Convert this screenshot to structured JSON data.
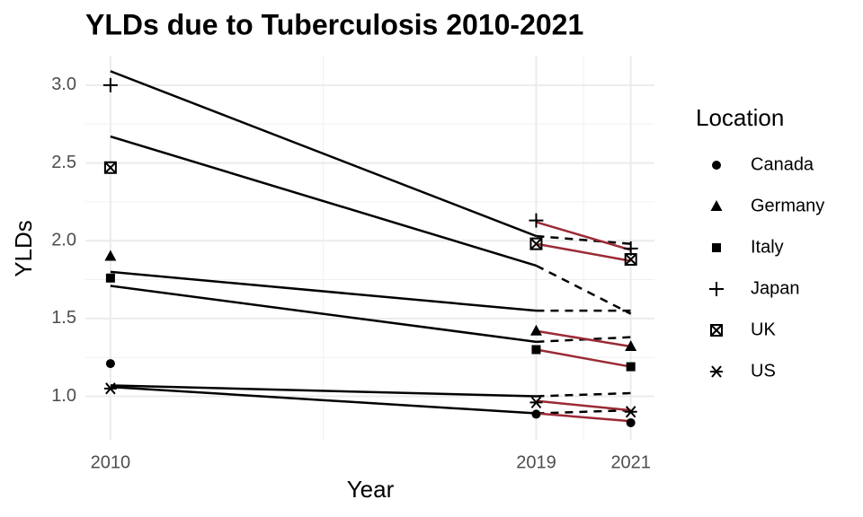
{
  "chart_data": {
    "type": "scatter",
    "title": "YLDs due to Tuberculosis 2010-2021",
    "x_label": "Year",
    "y_label": "YLDs",
    "x": [
      2010,
      2019,
      2021
    ],
    "xlim": [
      2009.47,
      2021.5
    ],
    "xticks": [
      2010,
      2019,
      2021
    ],
    "ylim": [
      0.72,
      3.19
    ],
    "yticks": [
      {
        "value": 1,
        "label": "1.0"
      },
      1.5,
      {
        "value": 2,
        "label": "2.0"
      },
      2.5,
      {
        "value": 3,
        "label": "3.0"
      }
    ],
    "grid": true,
    "legend_title": "Location",
    "legend_position": "right",
    "series": [
      {
        "name": "Canada",
        "shape": "circle",
        "color": "#000000",
        "values": [
          1.21,
          0.885,
          0.83
        ]
      },
      {
        "name": "Germany",
        "shape": "triangle",
        "color": "#000000",
        "values": [
          1.9,
          1.42,
          1.32
        ]
      },
      {
        "name": "Italy",
        "shape": "square",
        "color": "#000000",
        "values": [
          1.76,
          1.3,
          1.19
        ]
      },
      {
        "name": "Japan",
        "shape": "plus",
        "color": "#000000",
        "values": [
          3.0,
          2.13,
          1.95
        ]
      },
      {
        "name": "UK",
        "shape": "square-cross",
        "color": "#000000",
        "values": [
          2.47,
          1.98,
          1.88
        ]
      },
      {
        "name": "US",
        "shape": "asterisk",
        "color": "#000000",
        "values": [
          1.05,
          0.96,
          0.9
        ]
      }
    ],
    "lines": [
      {
        "x": [
          2010,
          2019
        ],
        "values": [
          3.09,
          2.03
        ],
        "color": "#000000",
        "dashed": false
      },
      {
        "x": [
          2010,
          2019
        ],
        "values": [
          2.67,
          1.84
        ],
        "color": "#000000",
        "dashed": false
      },
      {
        "x": [
          2010,
          2019
        ],
        "values": [
          1.8,
          1.55
        ],
        "color": "#000000",
        "dashed": false
      },
      {
        "x": [
          2010,
          2019
        ],
        "values": [
          1.71,
          1.35
        ],
        "color": "#000000",
        "dashed": false
      },
      {
        "x": [
          2010,
          2019
        ],
        "values": [
          1.07,
          1.0
        ],
        "color": "#000000",
        "dashed": false
      },
      {
        "x": [
          2010,
          2019
        ],
        "values": [
          1.06,
          0.89
        ],
        "color": "#000000",
        "dashed": false
      },
      {
        "x": [
          2019,
          2021
        ],
        "values": [
          2.03,
          1.98
        ],
        "color": "#000000",
        "dashed": true
      },
      {
        "x": [
          2019,
          2021
        ],
        "values": [
          1.84,
          1.53
        ],
        "color": "#000000",
        "dashed": true
      },
      {
        "x": [
          2019,
          2021
        ],
        "values": [
          1.55,
          1.55
        ],
        "color": "#000000",
        "dashed": true
      },
      {
        "x": [
          2019,
          2021
        ],
        "values": [
          1.35,
          1.38
        ],
        "color": "#000000",
        "dashed": true
      },
      {
        "x": [
          2019,
          2021
        ],
        "values": [
          1.0,
          1.02
        ],
        "color": "#000000",
        "dashed": true
      },
      {
        "x": [
          2019,
          2021
        ],
        "values": [
          0.89,
          0.91
        ],
        "color": "#000000",
        "dashed": true
      },
      {
        "x": [
          2019,
          2021
        ],
        "values": [
          2.12,
          1.94
        ],
        "color": "#9b2a35",
        "dashed": false
      },
      {
        "x": [
          2019,
          2021
        ],
        "values": [
          1.98,
          1.87
        ],
        "color": "#9b2a35",
        "dashed": false
      },
      {
        "x": [
          2019,
          2021
        ],
        "values": [
          1.42,
          1.32
        ],
        "color": "#9b2a35",
        "dashed": false
      },
      {
        "x": [
          2019,
          2021
        ],
        "values": [
          1.3,
          1.19
        ],
        "color": "#9b2a35",
        "dashed": false
      },
      {
        "x": [
          2019,
          2021
        ],
        "values": [
          0.97,
          0.91
        ],
        "color": "#9b2a35",
        "dashed": false
      },
      {
        "x": [
          2019,
          2021
        ],
        "values": [
          0.89,
          0.84
        ],
        "color": "#9b2a35",
        "dashed": false
      }
    ]
  }
}
